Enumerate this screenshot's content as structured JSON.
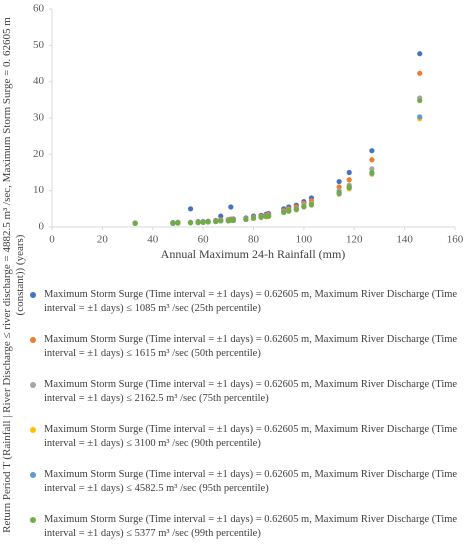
{
  "chart_data": {
    "type": "scatter",
    "x_label": "Annual Maximum 24-h Rainfall (mm)",
    "y_label": "Return Period T (Rainfall | River Discharge ≤ river discharge = 4882.5 m³ /sec, Maximum Storm Surge = 0. 62605 m (constant)) (years)",
    "xlim": [
      0,
      160
    ],
    "xticks": [
      0,
      20,
      40,
      60,
      80,
      100,
      120,
      140,
      160
    ],
    "ylim": [
      0,
      60
    ],
    "yticks": [
      0,
      10,
      20,
      30,
      40,
      50,
      60
    ],
    "x": [
      33,
      48,
      50,
      55,
      58,
      60,
      62,
      65,
      67,
      70,
      71,
      72,
      77,
      80,
      83,
      85,
      86,
      92,
      94,
      97,
      100,
      103,
      114,
      118,
      127,
      146
    ],
    "series": [
      {
        "name": "Maximum Storm Surge  (Time interval = ±1 days) = 0.62605 m, Maximum River Discharge  (Time interval = ±1 days) ≤ 1085 m³ /sec (25th percentile)",
        "color": "#4472c4",
        "values": [
          1.1,
          1.2,
          1.3,
          5.0,
          1.5,
          1.5,
          1.6,
          1.8,
          3.0,
          2.0,
          5.5,
          2.2,
          2.5,
          3.0,
          3.2,
          3.5,
          3.7,
          5.0,
          5.5,
          6.0,
          7.0,
          8.0,
          12.5,
          15.0,
          21.0,
          47.7
        ]
      },
      {
        "name": "Maximum Storm Surge  (Time interval = ±1 days) = 0.62605 m, Maximum River Discharge  (Time interval = ±1 days) ≤ 1615 m³ /sec (50th percentile)",
        "color": "#ed7d31",
        "values": [
          1.0,
          1.1,
          1.2,
          1.3,
          1.4,
          1.4,
          1.5,
          1.7,
          2.0,
          1.9,
          2.2,
          2.0,
          2.3,
          2.7,
          3.0,
          3.2,
          3.4,
          4.5,
          5.0,
          5.5,
          6.5,
          7.2,
          11.0,
          13.0,
          18.5,
          42.3
        ]
      },
      {
        "name": "Maximum Storm Surge  (Time interval = ±1 days) = 0.62605 m, Maximum River Discharge  (Time interval = ±1 days) ≤ 2162.5 m³ /sec (75th percentile)",
        "color": "#a5a5a5",
        "values": [
          1.0,
          1.1,
          1.2,
          1.2,
          1.3,
          1.3,
          1.4,
          1.6,
          1.8,
          1.8,
          2.0,
          1.9,
          2.2,
          2.5,
          2.8,
          3.0,
          3.1,
          4.2,
          4.6,
          5.0,
          6.0,
          6.5,
          10.0,
          11.5,
          16.0,
          35.5
        ]
      },
      {
        "name": "Maximum Storm Surge  (Time interval = ±1 days) = 0.62605 m, Maximum River Discharge  (Time interval = ±1 days) ≤ 3100 m³ /sec (90th percentile)",
        "color": "#ffc000",
        "values": [
          1.0,
          1.0,
          1.1,
          1.2,
          1.2,
          1.3,
          1.4,
          1.5,
          1.7,
          1.7,
          1.9,
          1.8,
          2.1,
          2.4,
          2.6,
          2.8,
          2.9,
          4.0,
          4.3,
          4.7,
          5.5,
          6.0,
          9.0,
          10.5,
          14.5,
          29.8
        ]
      },
      {
        "name": "Maximum Storm Surge  (Time interval = ±1 days) = 0.62605 m, Maximum River Discharge  (Time interval = ±1 days) ≤ 4582.5 m³ /sec (95th percentile)",
        "color": "#5b9bd5",
        "values": [
          1.0,
          1.0,
          1.1,
          1.2,
          1.2,
          1.3,
          1.4,
          1.5,
          1.7,
          1.7,
          1.9,
          1.8,
          2.1,
          2.4,
          2.7,
          2.9,
          3.0,
          4.1,
          4.4,
          4.8,
          5.6,
          6.1,
          9.2,
          10.8,
          14.8,
          30.3
        ]
      },
      {
        "name": "Maximum Storm Surge  (Time interval = ±1 days) = 0.62605 m, Maximum River Discharge  (Time interval = ±1 days) ≤ 5377 m³ /sec (99th percentile)",
        "color": "#70ad47",
        "values": [
          1.0,
          1.1,
          1.1,
          1.2,
          1.3,
          1.3,
          1.4,
          1.5,
          1.7,
          1.7,
          1.9,
          1.8,
          2.1,
          2.4,
          2.7,
          2.9,
          3.0,
          4.0,
          4.5,
          4.9,
          5.7,
          6.2,
          9.5,
          11.0,
          15.0,
          34.8
        ]
      }
    ]
  }
}
